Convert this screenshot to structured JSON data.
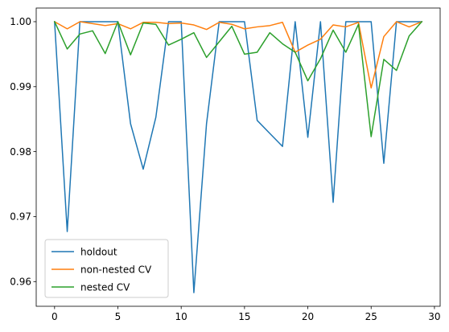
{
  "chart_data": {
    "type": "line",
    "title": "",
    "xlabel": "",
    "ylabel": "",
    "xlim": [
      -1.45,
      30.45
    ],
    "ylim": [
      0.9562,
      1.0021
    ],
    "x": [
      0,
      1,
      2,
      3,
      4,
      5,
      6,
      7,
      8,
      9,
      10,
      11,
      12,
      13,
      14,
      15,
      16,
      17,
      18,
      19,
      20,
      21,
      22,
      23,
      24,
      25,
      26,
      27,
      28,
      29
    ],
    "x_ticks": [
      0,
      5,
      10,
      15,
      20,
      25,
      30
    ],
    "x_tick_labels": [
      "0",
      "5",
      "10",
      "15",
      "20",
      "25",
      "30"
    ],
    "y_ticks": [
      0.96,
      0.97,
      0.98,
      0.99,
      1.0
    ],
    "y_tick_labels": [
      "0.96",
      "0.97",
      "0.98",
      "0.99",
      "1.00"
    ],
    "grid": false,
    "legend_position": "lower left",
    "series": [
      {
        "name": "holdout",
        "color": "#1f77b4",
        "values": [
          1.0,
          0.9677,
          1.0,
          1.0,
          1.0,
          1.0,
          0.9843,
          0.9773,
          0.9853,
          1.0,
          1.0,
          0.9583,
          0.9843,
          1.0,
          1.0,
          1.0,
          0.9848,
          0.9828,
          0.9808,
          1.0,
          0.9822,
          1.0,
          0.9722,
          1.0,
          1.0,
          1.0,
          0.9782,
          1.0,
          1.0,
          1.0
        ]
      },
      {
        "name": "non-nested CV",
        "color": "#ff7f0e",
        "values": [
          1.0,
          0.9989,
          1.0,
          0.9997,
          0.9994,
          0.9997,
          0.9989,
          0.9999,
          0.9999,
          0.9997,
          0.9998,
          0.9995,
          0.9988,
          0.9999,
          0.9996,
          0.9989,
          0.9992,
          0.9994,
          0.9999,
          0.9953,
          0.9964,
          0.9973,
          0.9995,
          0.9992,
          0.9999,
          0.9898,
          0.9977,
          1.0,
          0.9992,
          1.0
        ]
      },
      {
        "name": "nested CV",
        "color": "#2ca02c",
        "values": [
          1.0,
          0.9958,
          0.9981,
          0.9986,
          0.9951,
          1.0,
          0.9949,
          0.9998,
          0.9996,
          0.9964,
          0.9973,
          0.9983,
          0.9945,
          0.9969,
          0.9993,
          0.995,
          0.9953,
          0.9983,
          0.9966,
          0.9953,
          0.9909,
          0.9943,
          0.9987,
          0.9953,
          0.9996,
          0.9823,
          0.9942,
          0.9925,
          0.9978,
          1.0
        ]
      }
    ]
  }
}
